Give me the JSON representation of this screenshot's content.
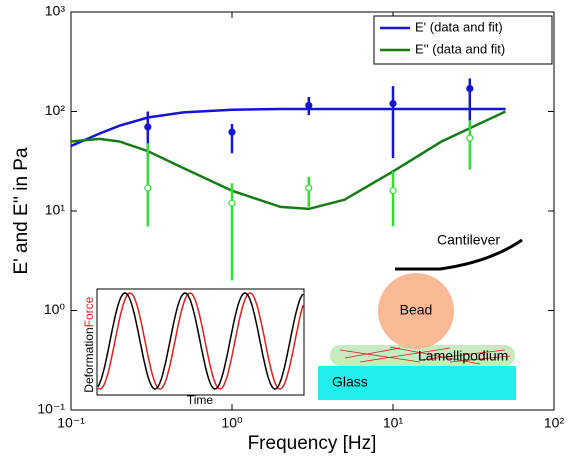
{
  "chart_data": {
    "type": "line",
    "xlabel": "Frequency [Hz]",
    "ylabel": "E' and E'' in Pa",
    "log_x": true,
    "log_y": true,
    "xlim": [
      0.1,
      100
    ],
    "ylim": [
      0.1,
      1000
    ],
    "xticks": [
      {
        "value": 0.1,
        "label": "10⁻¹"
      },
      {
        "value": 1,
        "label": "10⁰"
      },
      {
        "value": 10,
        "label": "10¹"
      },
      {
        "value": 100,
        "label": "10²"
      }
    ],
    "yticks": [
      {
        "value": 0.1,
        "label": "10⁻¹"
      },
      {
        "value": 1,
        "label": "10⁰"
      },
      {
        "value": 10,
        "label": "10¹"
      },
      {
        "value": 100,
        "label": "10²"
      },
      {
        "value": 1000,
        "label": "10³"
      }
    ],
    "legend": "upper right",
    "x": [
      0.3,
      1,
      3,
      10,
      30
    ],
    "fit_x": [
      0.1,
      0.15,
      0.2,
      0.3,
      0.5,
      1,
      2,
      3,
      5,
      10,
      20,
      30,
      50
    ],
    "series": [
      {
        "name": "E' (data and fit)",
        "color": "#1414d2",
        "point_color": "#1414d2",
        "marker": "filled",
        "values": [
          70,
          62,
          115,
          120,
          170
        ],
        "err_low": [
          36,
          24,
          23,
          86,
          105
        ],
        "err_high": [
          30,
          13,
          25,
          60,
          45
        ],
        "fit_values": [
          45,
          60,
          72,
          87,
          98,
          104,
          106,
          106,
          106,
          106,
          106,
          106,
          106
        ]
      },
      {
        "name": "E'' (data and fit)",
        "color": "#177a17",
        "point_color": "#33dd33",
        "marker": "open",
        "values": [
          17,
          12,
          17,
          16,
          54
        ],
        "err_low": [
          10,
          10,
          6,
          9,
          28
        ],
        "err_high": [
          31,
          7,
          5,
          9,
          28
        ],
        "fit_values": [
          50,
          53,
          50,
          40,
          27,
          16,
          11,
          10.5,
          13,
          25,
          50,
          68,
          100
        ]
      }
    ],
    "inset": {
      "force_label": "Force",
      "deformation_label": "Deformation",
      "time_label": "Time"
    },
    "diagram": {
      "cantilever": "Cantilever",
      "bead": "Bead",
      "lamellipodium": "Lamellipodium",
      "glass": "Glass"
    }
  }
}
